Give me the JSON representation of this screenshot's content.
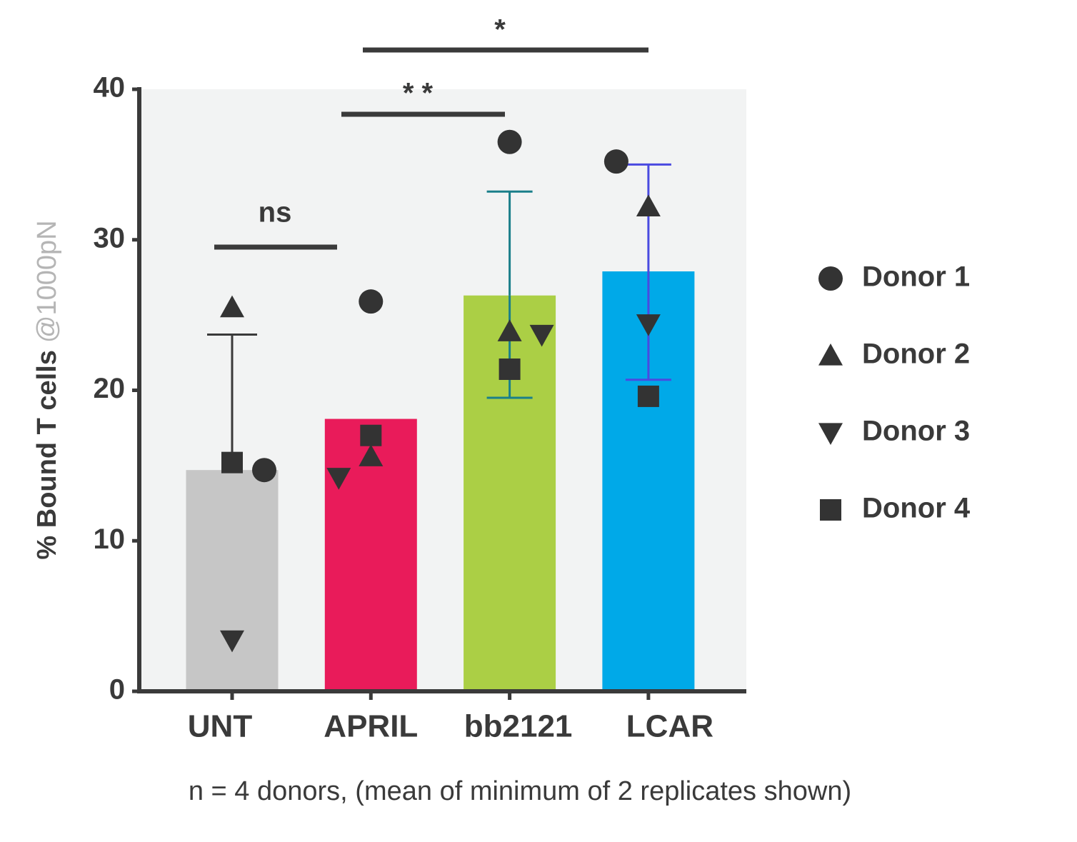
{
  "chart_data": {
    "type": "bar",
    "y_label": "% Bound T cells",
    "y_label_unit": "@1000pN",
    "note": "n = 4 donors, (mean of minimum of 2 replicates shown)",
    "categories": [
      "UNT",
      "APRIL",
      "bb2121",
      "LCAR"
    ],
    "values": [
      14.7,
      18.1,
      26.3,
      27.9
    ],
    "colors": [
      "#c6c6c6",
      "#e91b5a",
      "#abcf45",
      "#00a9e8"
    ],
    "error_high": [
      23.7,
      null,
      33.2,
      35.0
    ],
    "error_low": [
      null,
      null,
      19.5,
      20.7
    ],
    "error_colors": [
      "#3a3a3a",
      null,
      "#1a7f8a",
      "#4a4ae0"
    ],
    "donors": [
      {
        "name": "Donor 1",
        "marker": "circle",
        "color": "#333333",
        "values": [
          14.7,
          25.9,
          36.5,
          35.2
        ]
      },
      {
        "name": "Donor 2",
        "marker": "triangle-up",
        "color": "#333333",
        "values": [
          25.5,
          15.6,
          23.9,
          32.2
        ]
      },
      {
        "name": "Donor 3",
        "marker": "triangle-down",
        "color": "#333333",
        "values": [
          3.4,
          14.2,
          23.7,
          24.4
        ]
      },
      {
        "name": "Donor 4",
        "marker": "square",
        "color": "#333333",
        "values": [
          15.2,
          17.0,
          21.4,
          19.6
        ]
      }
    ],
    "significance": [
      "ns",
      "* *",
      "*"
    ],
    "ylim": [
      0,
      40
    ],
    "yticks": [
      0,
      10,
      20,
      30,
      40
    ],
    "background": "#f2f3f3"
  }
}
